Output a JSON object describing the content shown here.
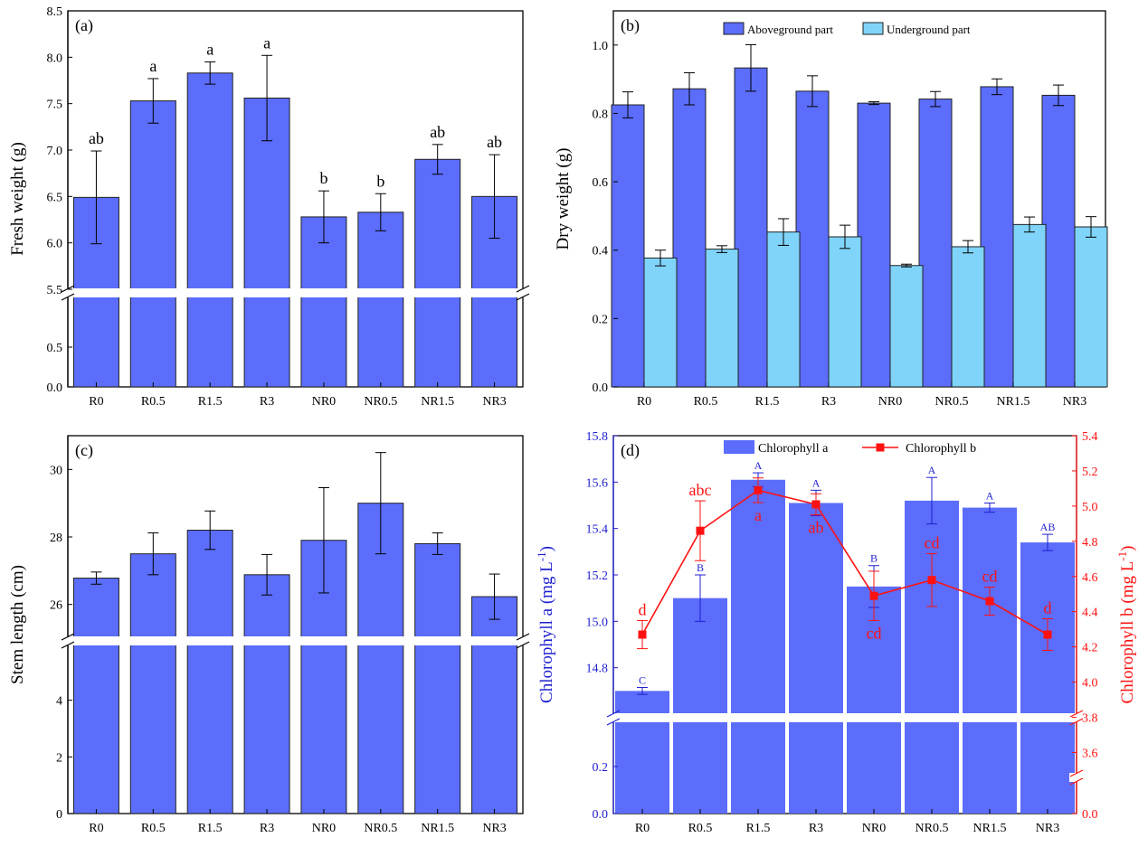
{
  "colors": {
    "bar": "#5b6dfa",
    "bar2": "#80d4fa",
    "blue_axis": "#1f1fd0",
    "red": "#ff1111",
    "frame": "#000000"
  },
  "chart_data": [
    {
      "panel": "(a)",
      "type": "bar",
      "categories": [
        "R0",
        "R0.5",
        "R1.5",
        "R3",
        "NR0",
        "NR0.5",
        "NR1.5",
        "NR3"
      ],
      "ylabel": "Fresh weight (g)",
      "axis_break": {
        "lower": [
          0,
          1.0
        ],
        "upper": [
          5.5,
          8.5
        ]
      },
      "lower_ticks": [
        "0.0",
        "0.5"
      ],
      "upper_ticks": [
        "5.5",
        "6.0",
        "6.5",
        "7.0",
        "7.5",
        "8.0",
        "8.5"
      ],
      "series": [
        {
          "values": [
            6.49,
            7.53,
            7.83,
            7.56,
            6.28,
            6.33,
            6.9,
            6.5
          ],
          "errors": [
            0.5,
            0.24,
            0.12,
            0.46,
            0.28,
            0.2,
            0.16,
            0.45
          ]
        }
      ],
      "annotations": [
        "ab",
        "a",
        "a",
        "a",
        "b",
        "b",
        "ab",
        "ab"
      ]
    },
    {
      "panel": "(b)",
      "type": "bar",
      "categories": [
        "R0",
        "R0.5",
        "R1.5",
        "R3",
        "NR0",
        "NR0.5",
        "NR1.5",
        "NR3"
      ],
      "ylabel": "Dry weight (g)",
      "ylim": [
        0,
        1.1
      ],
      "yticks": [
        "0.0",
        "0.2",
        "0.4",
        "0.6",
        "0.8",
        "1.0"
      ],
      "legend_position": "top",
      "series": [
        {
          "name": "Aboveground part",
          "values": [
            0.825,
            0.872,
            0.933,
            0.865,
            0.83,
            0.842,
            0.878,
            0.853
          ],
          "errors": [
            0.038,
            0.047,
            0.068,
            0.045,
            0.004,
            0.022,
            0.023,
            0.03
          ]
        },
        {
          "name": "Underground part",
          "values": [
            0.377,
            0.403,
            0.453,
            0.439,
            0.355,
            0.41,
            0.475,
            0.468
          ],
          "errors": [
            0.023,
            0.01,
            0.039,
            0.034,
            0.004,
            0.018,
            0.022,
            0.03
          ]
        }
      ]
    },
    {
      "panel": "(c)",
      "type": "bar",
      "categories": [
        "R0",
        "R0.5",
        "R1.5",
        "R3",
        "NR0",
        "NR0.5",
        "NR1.5",
        "NR3"
      ],
      "ylabel": "Stem length (cm)",
      "axis_break": {
        "lower": [
          0,
          6
        ],
        "upper": [
          25,
          31
        ]
      },
      "lower_ticks": [
        "0",
        "2",
        "4"
      ],
      "upper_ticks": [
        "26",
        "28",
        "30"
      ],
      "series": [
        {
          "values": [
            26.78,
            27.5,
            28.2,
            26.88,
            27.9,
            29.0,
            27.8,
            26.23
          ],
          "errors": [
            0.18,
            0.62,
            0.57,
            0.6,
            1.56,
            1.5,
            0.32,
            0.67
          ]
        }
      ]
    },
    {
      "panel": "(d)",
      "type": "bar",
      "categories": [
        "R0",
        "R0.5",
        "R1.5",
        "R3",
        "NR0",
        "NR0.5",
        "NR1.5",
        "NR3"
      ],
      "ylabel": "Chlorophyll a (mg L",
      "ylabel_sup": "-1",
      "ylabel_close": ")",
      "y2label": "Chlorophyll b (mg L",
      "y2label_sup": "-1",
      "y2label_close": ")",
      "axis_break": {
        "lower": [
          0,
          0.4
        ],
        "upper": [
          14.6,
          15.8
        ]
      },
      "lower_ticks": [
        "0.0",
        "0.2"
      ],
      "upper_ticks": [
        "14.8",
        "15.0",
        "15.2",
        "15.4",
        "15.6",
        "15.8"
      ],
      "axis2_break": {
        "lower": [
          0,
          3.4
        ],
        "upper": [
          3.7,
          5.4
        ]
      },
      "lower_ticks2": [
        "0.0",
        "3.6"
      ],
      "upper_ticks2": [
        "3.8",
        "4.0",
        "4.2",
        "4.4",
        "4.6",
        "4.8",
        "5.0",
        "5.2",
        "5.4"
      ],
      "legend_position": "top",
      "series": [
        {
          "name": "Chlorophyll a",
          "type": "bar",
          "values": [
            14.7,
            15.1,
            15.61,
            15.51,
            15.15,
            15.52,
            15.49,
            15.34
          ],
          "errors": [
            0.015,
            0.1,
            0.03,
            0.055,
            0.09,
            0.1,
            0.02,
            0.035
          ]
        },
        {
          "name": "Chlorophyll b",
          "type": "line",
          "axis": "right",
          "values": [
            4.27,
            4.86,
            5.09,
            5.01,
            4.49,
            4.58,
            4.46,
            4.27
          ],
          "errors": [
            0.08,
            0.17,
            0.07,
            0.06,
            0.14,
            0.15,
            0.08,
            0.09
          ]
        }
      ],
      "annotations_a": [
        "C",
        "B",
        "A",
        "A",
        "B",
        "A",
        "A",
        "AB"
      ],
      "annotations_b": [
        "d",
        "abc",
        "a",
        "ab",
        "cd",
        "cd",
        "cd",
        "d"
      ]
    }
  ]
}
